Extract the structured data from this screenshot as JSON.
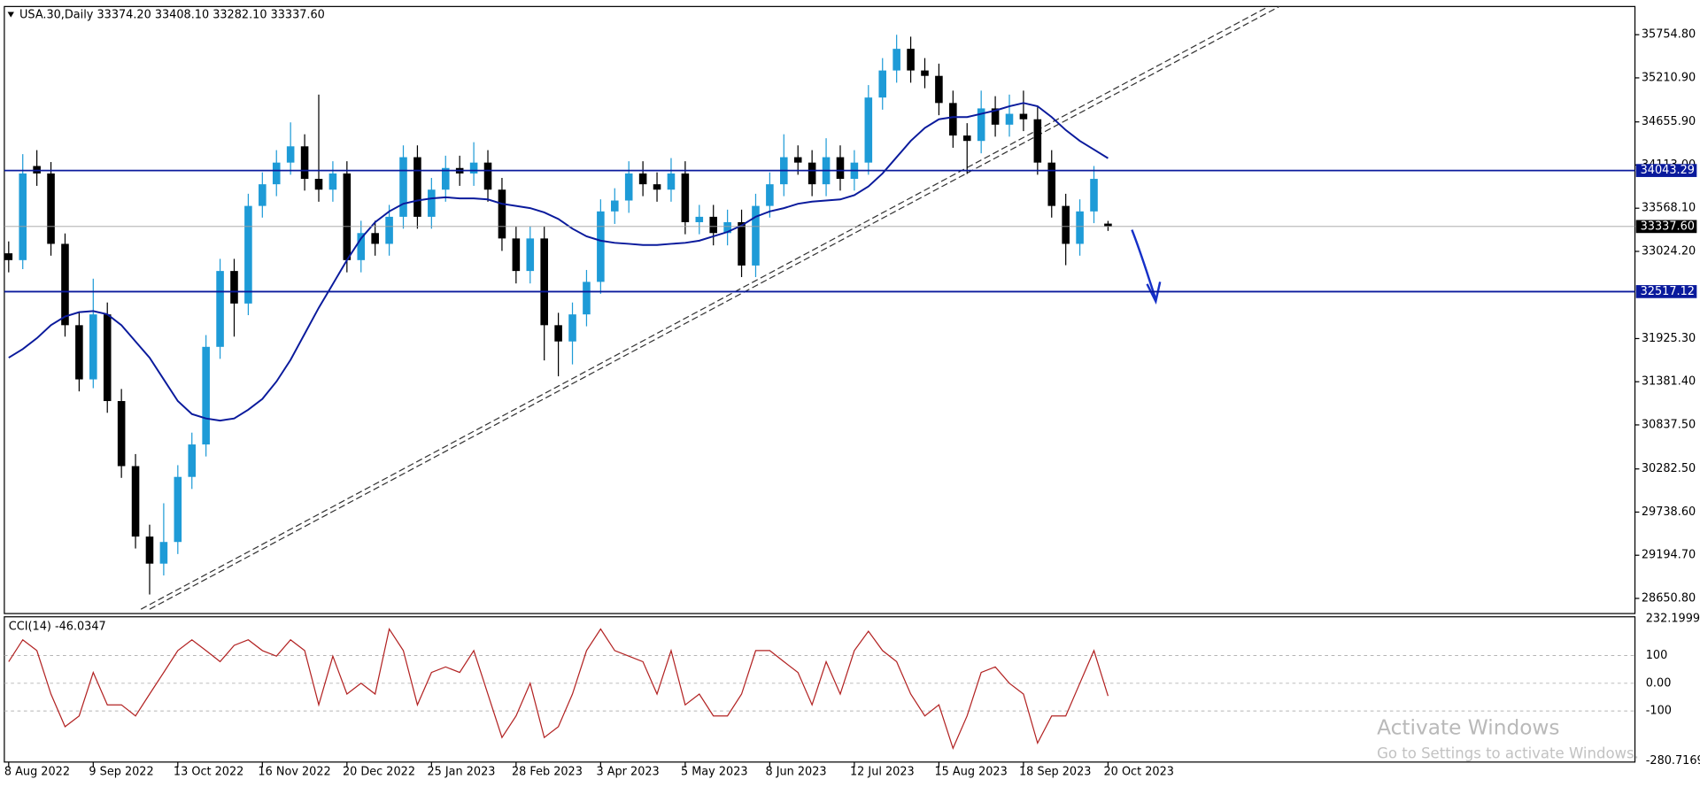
{
  "header": "USA.30,Daily 33374.20 33408.10 33282.10 33337.60",
  "watermark": {
    "title": "Activate Windows",
    "subtitle": "Go to Settings to activate Windows."
  },
  "chart_data": [
    {
      "type": "candlestick",
      "categories": [
        "8 Aug 2022",
        null,
        null,
        null,
        null,
        null,
        "9 Sep 2022",
        null,
        null,
        null,
        null,
        null,
        "13 Oct 2022",
        null,
        null,
        null,
        null,
        null,
        "16 Nov 2022",
        null,
        null,
        null,
        null,
        null,
        "20 Dec 2022",
        null,
        null,
        null,
        null,
        null,
        "25 Jan 2023",
        null,
        null,
        null,
        null,
        null,
        "28 Feb 2023",
        null,
        null,
        null,
        null,
        null,
        "3 Apr 2023",
        null,
        null,
        null,
        null,
        null,
        "5 May 2023",
        null,
        null,
        null,
        null,
        null,
        "8 Jun 2023",
        null,
        null,
        null,
        null,
        null,
        "12 Jul 2023",
        null,
        null,
        null,
        null,
        null,
        "15 Aug 2023",
        null,
        null,
        null,
        null,
        null,
        "18 Sep 2023",
        null,
        null,
        null,
        null,
        null,
        "20 Oct 2023"
      ],
      "open": [
        33000,
        32914,
        34100,
        34006,
        33119,
        32094,
        31411,
        32230,
        31138,
        30318,
        29430,
        29089,
        29362,
        30182,
        30591,
        31821,
        32777,
        32367,
        33597,
        33870,
        34143,
        34348,
        33938,
        33802,
        34006,
        32914,
        33255,
        33119,
        33460,
        34211,
        33460,
        33802,
        34075,
        34006,
        34143,
        33802,
        33187,
        32777,
        33187,
        32094,
        31889,
        32230,
        32640,
        33528,
        33665,
        34006,
        33870,
        33802,
        34006,
        33392,
        33460,
        33255,
        33392,
        32846,
        33597,
        33870,
        34211,
        34143,
        33870,
        34211,
        33938,
        34143,
        34963,
        35304,
        35577,
        35304,
        35236,
        34894,
        34484,
        34416,
        34826,
        34621,
        34758,
        34689,
        34143,
        33597,
        33119,
        33528,
        33374.2
      ],
      "high": [
        33150,
        34250,
        34300,
        34150,
        33250,
        32250,
        32680,
        32380,
        31290,
        30470,
        29580,
        29850,
        30330,
        30740,
        31970,
        32930,
        32930,
        33750,
        34020,
        34300,
        34650,
        34500,
        35000,
        34160,
        34160,
        33410,
        33410,
        33610,
        34360,
        34360,
        33950,
        34230,
        34230,
        34400,
        34300,
        33950,
        33340,
        33340,
        33340,
        32250,
        32380,
        32790,
        33680,
        33820,
        34160,
        34160,
        34020,
        34200,
        34160,
        33610,
        33610,
        33550,
        33550,
        33750,
        34020,
        34500,
        34360,
        34300,
        34450,
        34360,
        34300,
        35120,
        35460,
        35754,
        35730,
        35460,
        35390,
        35050,
        34640,
        35050,
        34980,
        35000,
        35050,
        34840,
        34300,
        33750,
        33680,
        34100,
        33408.1
      ],
      "low": [
        32760,
        32800,
        33850,
        32970,
        31950,
        31260,
        31300,
        30990,
        30170,
        29280,
        28700,
        28940,
        29210,
        30030,
        30440,
        31670,
        31950,
        32220,
        33450,
        33720,
        33990,
        33790,
        33650,
        33650,
        32760,
        32760,
        32970,
        32970,
        33310,
        33310,
        33310,
        33650,
        33850,
        33850,
        33650,
        33030,
        32620,
        32620,
        31650,
        31450,
        31600,
        32080,
        32490,
        33370,
        33510,
        33720,
        33650,
        33650,
        33240,
        33240,
        33100,
        33100,
        32700,
        32700,
        33450,
        33720,
        33990,
        33720,
        33720,
        33790,
        33790,
        33990,
        34810,
        35150,
        35150,
        35080,
        34740,
        34330,
        34000,
        34260,
        34470,
        34470,
        34540,
        33990,
        33450,
        32850,
        32970,
        33380,
        33282.1
      ],
      "close": [
        32914,
        34006,
        34006,
        33119,
        32094,
        31411,
        32230,
        31138,
        30318,
        29430,
        29089,
        29362,
        30182,
        30591,
        31821,
        32777,
        32367,
        33597,
        33870,
        34143,
        34348,
        33938,
        33802,
        34006,
        32914,
        33255,
        33119,
        33460,
        34211,
        33460,
        33802,
        34075,
        34006,
        34143,
        33802,
        33187,
        32777,
        33187,
        32094,
        31889,
        32230,
        32640,
        33528,
        33665,
        34006,
        33870,
        33802,
        34006,
        33392,
        33460,
        33255,
        33392,
        32846,
        33597,
        33870,
        34211,
        34143,
        33870,
        34211,
        33938,
        34143,
        34963,
        35304,
        35577,
        35304,
        35236,
        34894,
        34484,
        34416,
        34826,
        34621,
        34758,
        34689,
        34143,
        33597,
        33119,
        33528,
        33938,
        33337.6
      ],
      "up_color": "#1e9bd7",
      "down_color": "#000000",
      "ma": {
        "color": "#0a1a9c",
        "values": [
          31684,
          31793,
          31930,
          32094,
          32203,
          32258,
          32272,
          32231,
          32094,
          31889,
          31684,
          31411,
          31138,
          30974,
          30919,
          30892,
          30919,
          31029,
          31165,
          31384,
          31657,
          31985,
          32313,
          32613,
          32914,
          33187,
          33392,
          33528,
          33624,
          33665,
          33692,
          33706,
          33692,
          33692,
          33679,
          33624,
          33597,
          33569,
          33515,
          33433,
          33310,
          33214,
          33159,
          33132,
          33119,
          33105,
          33105,
          33119,
          33132,
          33159,
          33214,
          33269,
          33351,
          33460,
          33528,
          33569,
          33624,
          33651,
          33665,
          33679,
          33733,
          33843,
          34006,
          34211,
          34416,
          34580,
          34689,
          34717,
          34717,
          34758,
          34799,
          34853,
          34894,
          34853,
          34717,
          34553,
          34416,
          34307,
          34198
        ]
      },
      "hlines": [
        34043.29,
        32517.12
      ],
      "hline_color": "#0a1a9c",
      "last_price": {
        "value": 33337.6,
        "label": "33337.60"
      },
      "ylim": [
        28460,
        36110
      ],
      "yticks": [
        {
          "value": 35754.8,
          "label": "35754.80"
        },
        {
          "value": 35210.9,
          "label": "35210.90"
        },
        {
          "value": 34655.9,
          "label": "34655.90"
        },
        {
          "value": 34113,
          "label": "34113.00"
        },
        {
          "value": 33568.1,
          "label": "33568.10"
        },
        {
          "value": 33024.2,
          "label": "33024.20"
        },
        {
          "value": 31925.3,
          "label": "31925.30"
        },
        {
          "value": 31381.4,
          "label": "31381.40"
        },
        {
          "value": 30837.5,
          "label": "30837.50"
        },
        {
          "value": 30282.5,
          "label": "30282.50"
        },
        {
          "value": 29738.6,
          "label": "29738.60"
        },
        {
          "value": 29194.7,
          "label": "29194.70"
        },
        {
          "value": 28650.8,
          "label": "28650.80"
        }
      ]
    },
    {
      "type": "line",
      "title": "CCI(14) -46.0347",
      "color": "#b22222",
      "values": [
        78,
        157,
        118,
        -39,
        -157,
        -118,
        39,
        -78,
        -78,
        -118,
        -39,
        39,
        118,
        157,
        118,
        78,
        137,
        157,
        118,
        98,
        157,
        118,
        -78,
        98,
        -39,
        0,
        -39,
        196,
        118,
        -78,
        39,
        59,
        39,
        118,
        -39,
        -196,
        -118,
        0,
        -196,
        -157,
        -39,
        118,
        196,
        118,
        98,
        78,
        -39,
        118,
        -78,
        -39,
        -118,
        -118,
        -39,
        118,
        118,
        78,
        39,
        -78,
        78,
        -39,
        118,
        188,
        118,
        78,
        -39,
        -118,
        -78,
        -235,
        -118,
        39,
        59,
        0,
        -39,
        -216,
        -118,
        -118,
        0,
        118,
        -46.0347
      ],
      "ylim": [
        -280.7169,
        232.1999
      ],
      "yticks": [
        232.1999,
        100,
        {
          "value": 0,
          "label": "0.00"
        },
        -100,
        -280.7169
      ]
    }
  ]
}
